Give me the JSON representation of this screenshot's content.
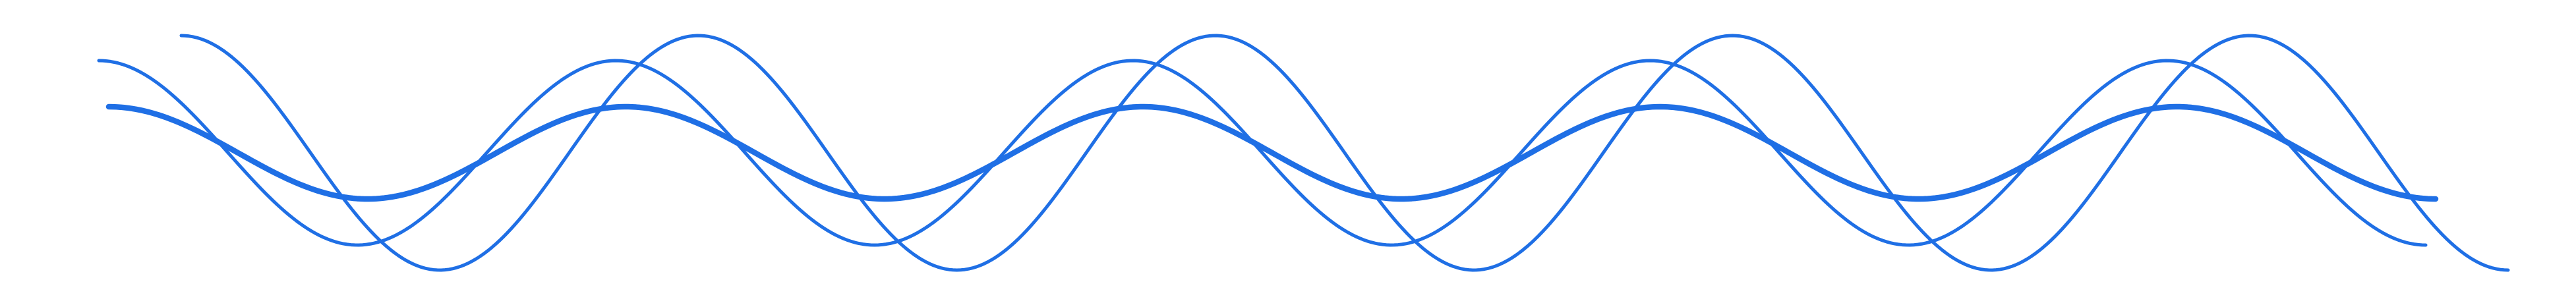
{
  "graphic": {
    "type": "decorative-wave-lines",
    "background_color": "#ffffff",
    "line_color": "#1f6fe5",
    "waves": [
      {
        "name": "wave-thin-medium",
        "weight": "thin",
        "cycles": 4.5
      },
      {
        "name": "wave-thin-large",
        "weight": "thin",
        "cycles": 4.5
      },
      {
        "name": "wave-bold-small",
        "weight": "bold",
        "cycles": 4.5
      }
    ]
  }
}
